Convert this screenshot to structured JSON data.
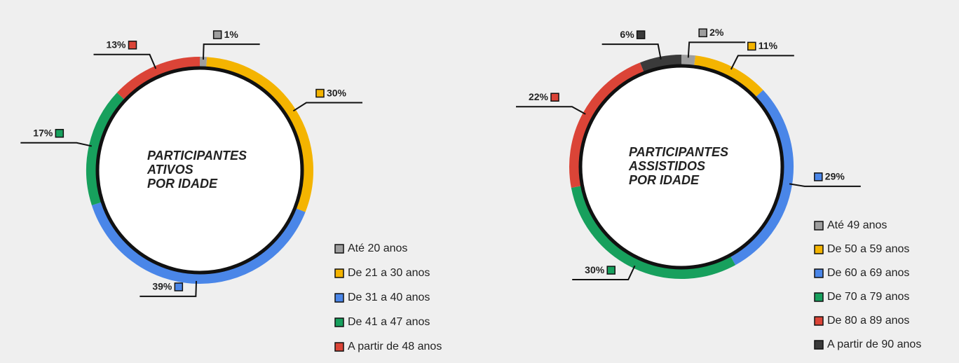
{
  "chart_data": [
    {
      "type": "donut",
      "title": [
        "PARTICIPANTES",
        "ATIVOS",
        "POR IDADE"
      ],
      "categories": [
        "Até 20 anos",
        "De 21 a 30 anos",
        "De 31 a 40 anos",
        "De 41 a 47 anos",
        "A partir de 48 anos"
      ],
      "values": [
        1,
        30,
        39,
        17,
        13
      ],
      "value_labels": [
        "1%",
        "30%",
        "39%",
        "17%",
        "13%"
      ],
      "colors": [
        "#9e9e9e",
        "#f4b400",
        "#4a86e8",
        "#17a05d",
        "#db4437"
      ]
    },
    {
      "type": "donut",
      "title": [
        "PARTICIPANTES",
        "ASSISTIDOS",
        "POR IDADE"
      ],
      "categories": [
        "Até 49 anos",
        "De 50 a 59 anos",
        "De 60 a 69 anos",
        "De 70 a 79 anos",
        "De 80 a 89 anos",
        "A partir de 90 anos"
      ],
      "values": [
        2,
        11,
        29,
        30,
        22,
        6
      ],
      "value_labels": [
        "2%",
        "11%",
        "29%",
        "30%",
        "22%",
        "6%"
      ],
      "colors": [
        "#9e9e9e",
        "#f4b400",
        "#4a86e8",
        "#17a05d",
        "#db4437",
        "#3a3a3a"
      ]
    }
  ]
}
